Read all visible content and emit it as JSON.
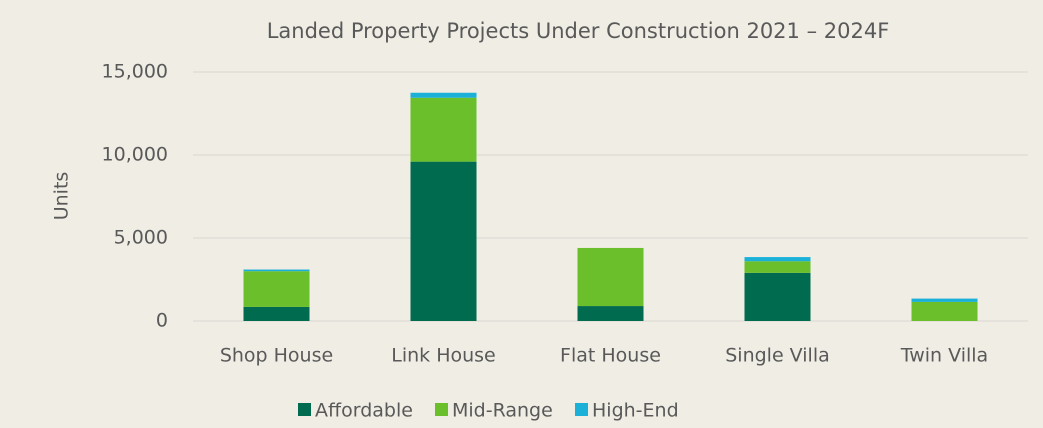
{
  "chart_data": {
    "type": "stacked_bar",
    "title": "Landed Property Projects Under Construction 2021 – 2024F",
    "y_label": "Units",
    "categories": [
      "Shop House",
      "Link House",
      "Flat House",
      "Single Villa",
      "Twin Villa"
    ],
    "series": [
      {
        "name": "Affordable",
        "color": "#006b4f",
        "values": [
          850,
          9600,
          900,
          2900,
          0
        ]
      },
      {
        "name": "Mid-Range",
        "color": "#6abf2a",
        "values": [
          2150,
          3850,
          3500,
          700,
          1150
        ]
      },
      {
        "name": "High-End",
        "color": "#1ab0d8",
        "values": [
          100,
          300,
          0,
          250,
          200
        ]
      }
    ],
    "ylim": [
      0,
      15000
    ],
    "yticks": [
      0,
      {
        "value": 5000,
        "label": "5,000"
      },
      {
        "value": 10000,
        "label": "10,000"
      },
      {
        "value": 15000,
        "label": "15,000"
      }
    ],
    "grid": true
  }
}
